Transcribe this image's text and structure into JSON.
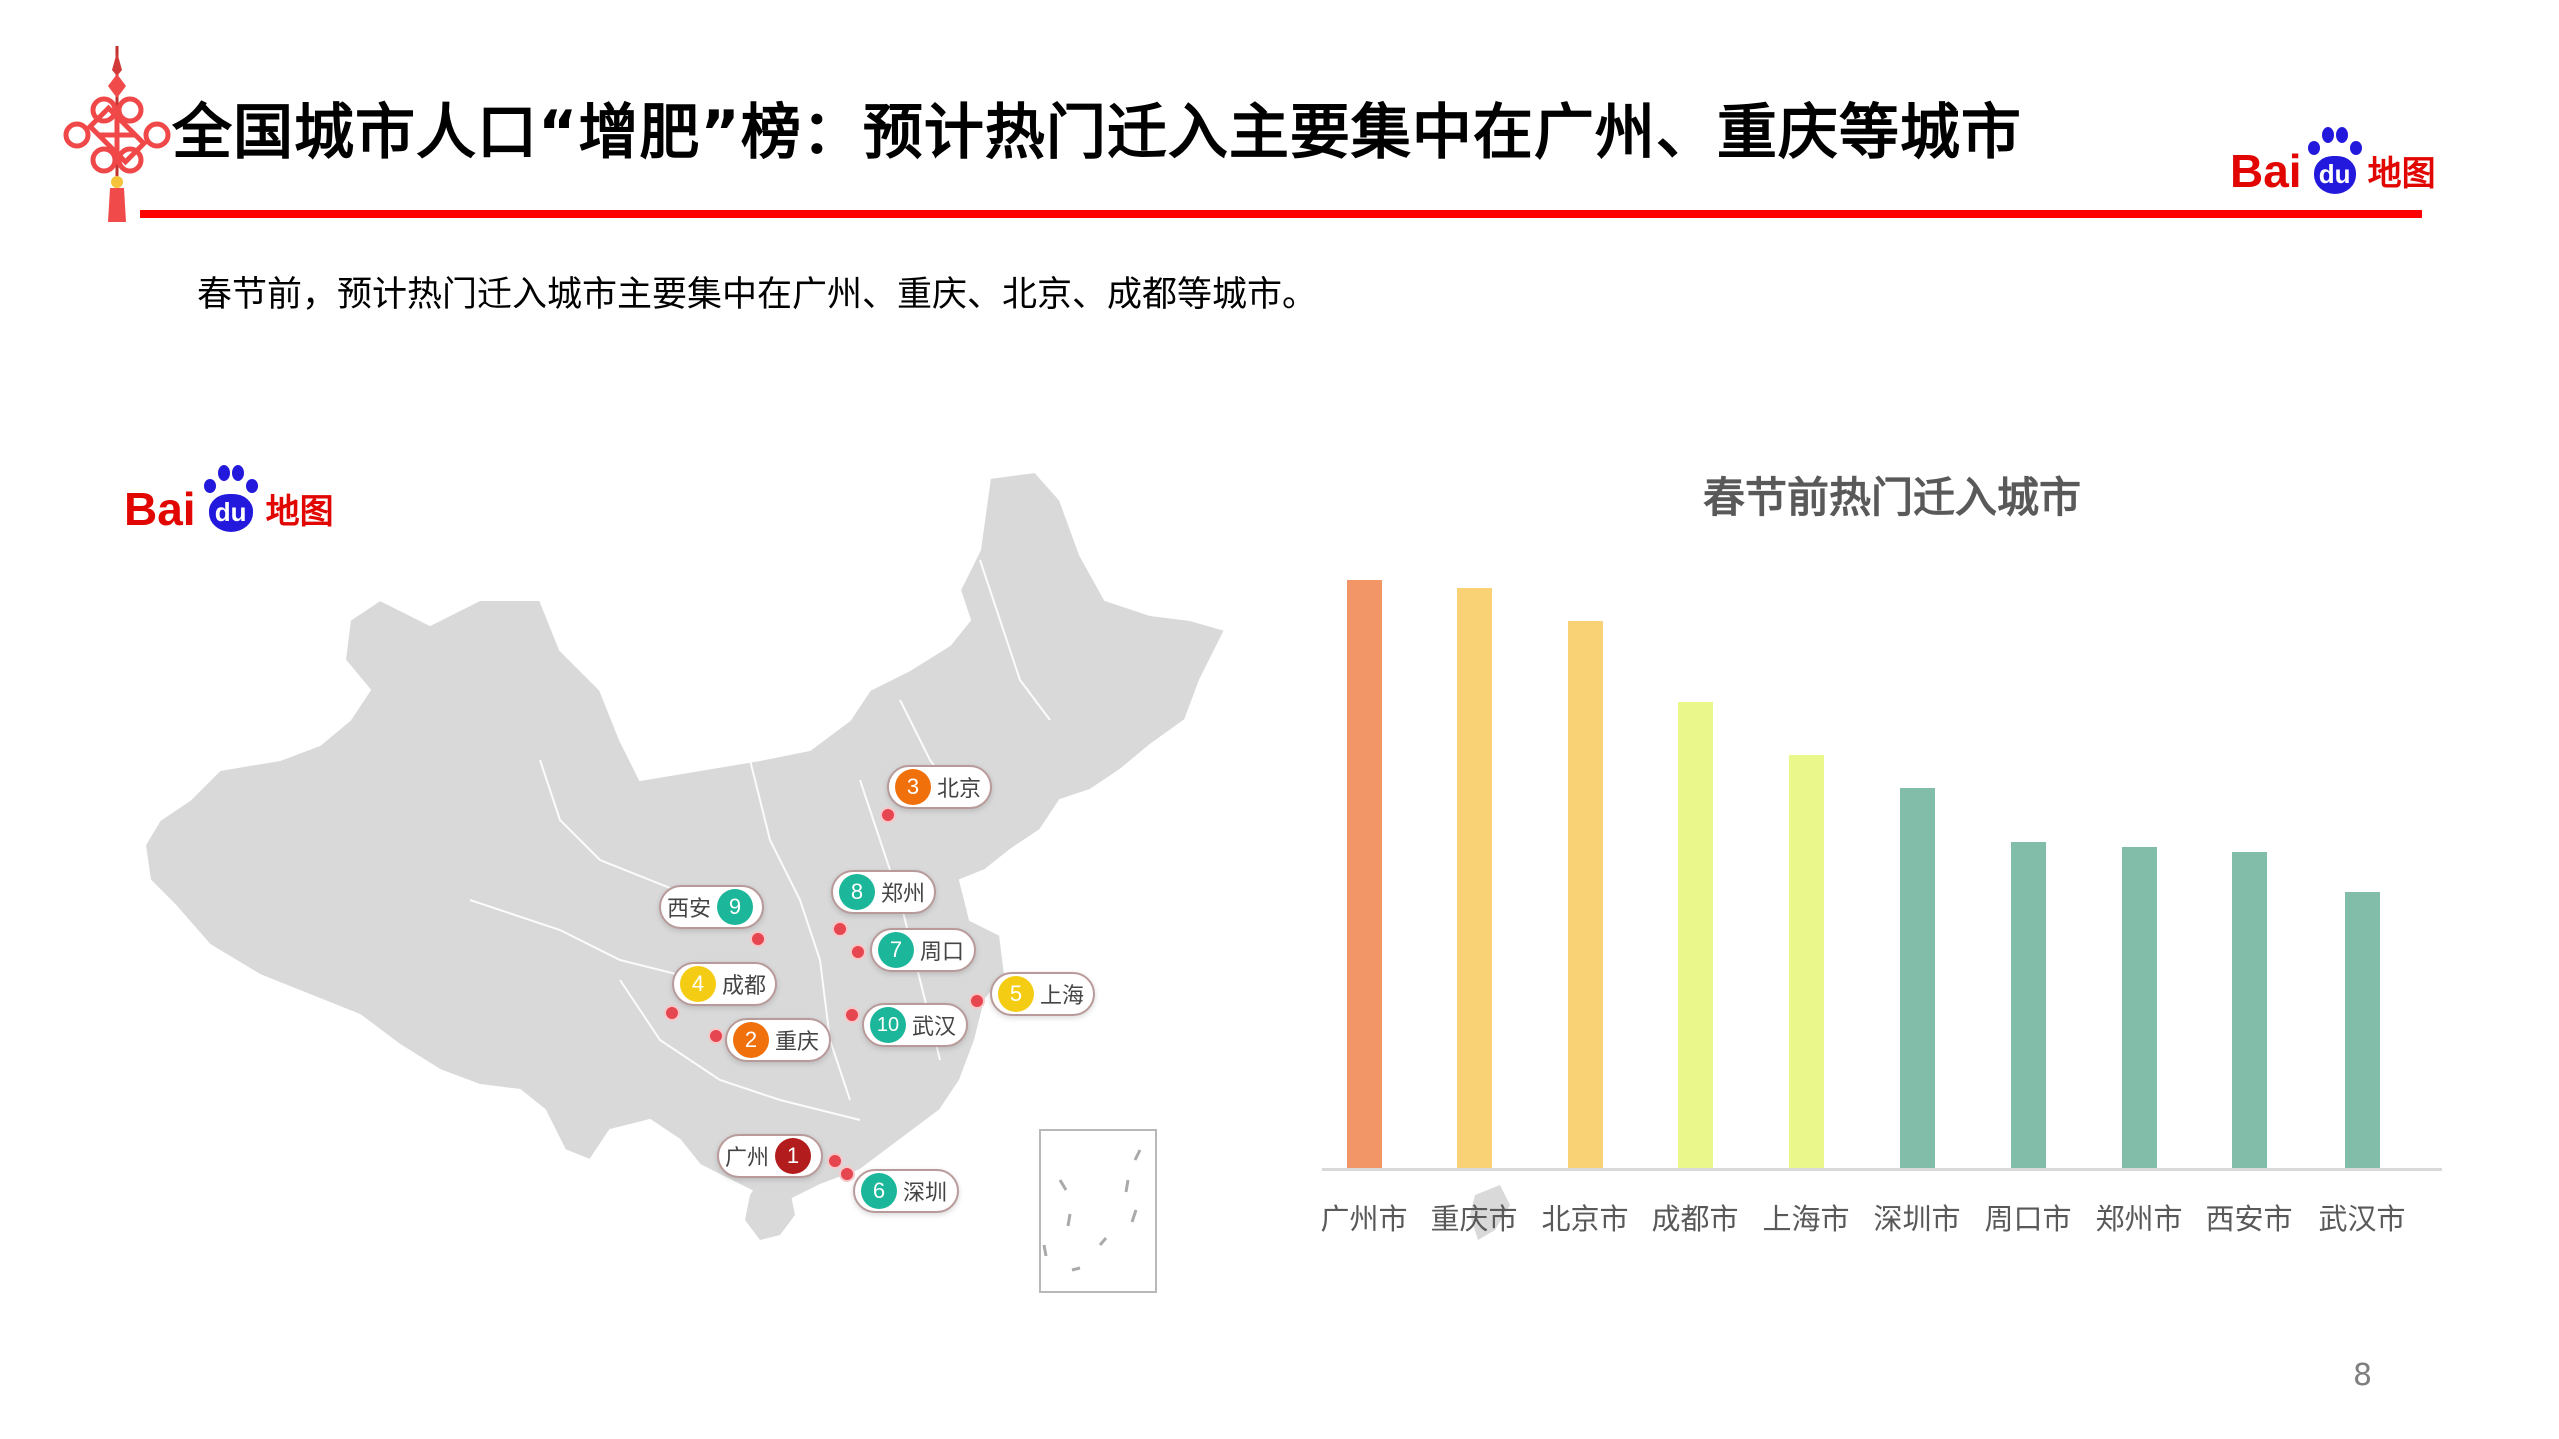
{
  "header": {
    "title": "全国城市人口“增肥”榜：预计热门迁入主要集中在广州、重庆等城市",
    "logo": {
      "bai": "Bai",
      "du": "du",
      "ditu": "地图"
    },
    "rule_color": "#ff0000"
  },
  "subtitle": "春节前，预计热门迁入城市主要集中在广州、重庆、北京、成都等城市。",
  "map": {
    "logo": {
      "bai": "Bai",
      "du": "du",
      "ditu": "地图"
    },
    "markers": [
      {
        "rank": "1",
        "city": "广州",
        "color": "#b21c1c",
        "num_first": false
      },
      {
        "rank": "2",
        "city": "重庆",
        "color": "#f0700c",
        "num_first": true
      },
      {
        "rank": "3",
        "city": "北京",
        "color": "#f0700c",
        "num_first": true
      },
      {
        "rank": "4",
        "city": "成都",
        "color": "#f5cc14",
        "num_first": true
      },
      {
        "rank": "5",
        "city": "上海",
        "color": "#f5cc14",
        "num_first": true
      },
      {
        "rank": "6",
        "city": "深圳",
        "color": "#1cb79a",
        "num_first": true
      },
      {
        "rank": "7",
        "city": "周口",
        "color": "#1cb79a",
        "num_first": true
      },
      {
        "rank": "8",
        "city": "郑州",
        "color": "#1cb79a",
        "num_first": true
      },
      {
        "rank": "9",
        "city": "西安",
        "color": "#1cb79a",
        "num_first": false
      },
      {
        "rank": "10",
        "city": "武汉",
        "color": "#1cb79a",
        "num_first": true
      }
    ]
  },
  "chart_data": {
    "type": "bar",
    "title": "春节前热门迁入城市",
    "categories": [
      "广州市",
      "重庆市",
      "北京市",
      "成都市",
      "上海市",
      "深圳市",
      "周口市",
      "郑州市",
      "西安市",
      "武汉市"
    ],
    "values": [
      100,
      98.6,
      93.0,
      79.3,
      70.3,
      64.7,
      55.5,
      54.7,
      53.8,
      47.0
    ],
    "value_note": "relative bar heights (no axis shown); 广州市 = 100",
    "colors": [
      "#f29668",
      "#f9d276",
      "#f9d276",
      "#eaf78a",
      "#eaf78a",
      "#82bdaa",
      "#82bdaa",
      "#82bdaa",
      "#82bdaa",
      "#82bdaa"
    ],
    "xlabel": "",
    "ylabel": "",
    "grid": false,
    "legend": false,
    "ylim": [
      0,
      100
    ]
  },
  "page_number": "8"
}
